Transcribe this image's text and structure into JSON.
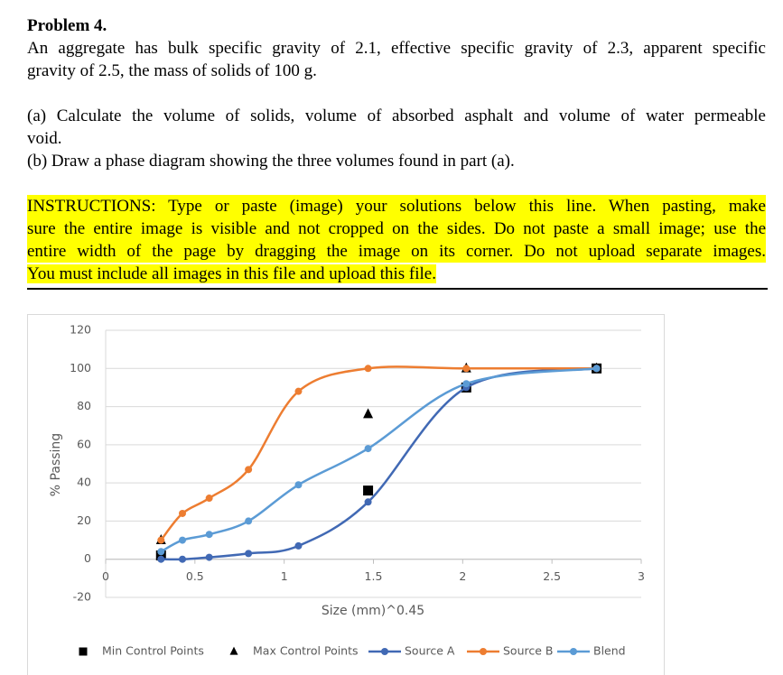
{
  "problem": {
    "title": "Problem 4.",
    "statement": [
      "An aggregate has bulk specific gravity of 2.1, effective specific gravity of 2.3, apparent specific",
      "gravity of 2.5, the mass of solids of 100 g."
    ],
    "part_a": [
      "(a) Calculate the volume of solids, volume of absorbed asphalt and volume of water permeable",
      "void."
    ],
    "part_b": "(b) Draw a phase diagram showing the three volumes found in part (a).",
    "instructions": {
      "label": "INSTRUCTIONS",
      "lines": [
        ": Type or paste (image) your solutions below this line. When pasting, make",
        "sure the entire image is visible and not cropped on the sides. Do not paste a small image; use the",
        "entire width of the page by dragging the image on its corner. Do not upload separate images.",
        "You must include all images in this file and upload this file."
      ]
    }
  },
  "chart_data": {
    "type": "line",
    "x_label": "Size (mm)^0.45",
    "y_label": "% Passing",
    "xlim": [
      0,
      3
    ],
    "xticks": [
      0,
      0.5,
      1,
      1.5,
      2,
      2.5,
      3
    ],
    "ylim": [
      -20,
      120
    ],
    "yticks": [
      -20,
      0,
      20,
      40,
      60,
      80,
      100,
      120
    ],
    "grid": true,
    "series": [
      {
        "name": "Min Control Points",
        "color": "#000000",
        "marker": "square",
        "line": false,
        "x": [
          0.31,
          1.47,
          2.02,
          2.75
        ],
        "values": [
          2,
          36,
          90,
          100
        ]
      },
      {
        "name": "Max Control Points",
        "color": "#000000",
        "marker": "triangle",
        "line": false,
        "x": [
          0.31,
          1.47,
          2.02,
          2.75
        ],
        "values": [
          10,
          76,
          100,
          100
        ]
      },
      {
        "name": "Source A",
        "color": "#4169b4",
        "marker": "circle",
        "line": true,
        "x": [
          0.31,
          0.43,
          0.58,
          0.8,
          1.08,
          1.47,
          2.02,
          2.75
        ],
        "values": [
          0,
          0,
          1,
          3,
          7,
          30,
          90,
          100
        ]
      },
      {
        "name": "Source B",
        "color": "#ed7d31",
        "marker": "circle",
        "line": true,
        "x": [
          0.31,
          0.43,
          0.58,
          0.8,
          1.08,
          1.47,
          2.02,
          2.75
        ],
        "values": [
          10,
          24,
          32,
          47,
          88,
          100,
          100,
          100
        ]
      },
      {
        "name": "Blend",
        "color": "#5b9bd5",
        "marker": "circle",
        "line": true,
        "x": [
          0.31,
          0.43,
          0.58,
          0.8,
          1.08,
          1.47,
          2.02,
          2.75
        ],
        "values": [
          4,
          10,
          13,
          20,
          39,
          58,
          92,
          100
        ]
      }
    ]
  }
}
